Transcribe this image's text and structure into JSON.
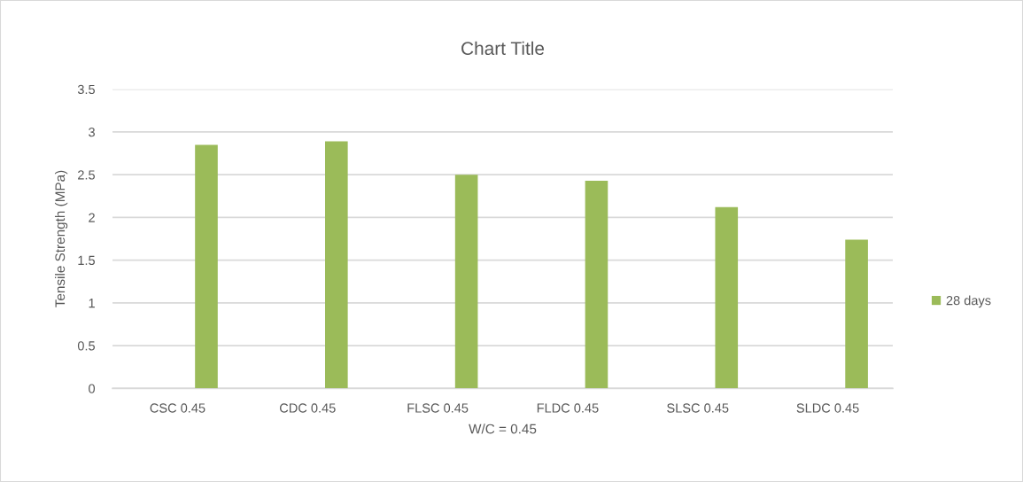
{
  "chart_data": {
    "type": "bar",
    "title": "Chart Title",
    "xlabel": "W/C = 0.45",
    "ylabel": "Tensile Strength (MPa)",
    "categories": [
      "CSC 0.45",
      "CDC 0.45",
      "FLSC 0.45",
      "FLDC 0.45",
      "SLSC 0.45",
      "SLDC 0.45"
    ],
    "series": [
      {
        "values": [
          null,
          null,
          null,
          null,
          null,
          null
        ]
      },
      {
        "values": [
          null,
          null,
          null,
          null,
          null,
          null
        ]
      },
      {
        "name": "28 days",
        "color": "#9bbb59",
        "values": [
          2.85,
          2.89,
          2.5,
          2.43,
          2.12,
          1.74
        ]
      }
    ],
    "ylim": [
      0,
      3.5
    ],
    "yticks": [
      0,
      0.5,
      1,
      1.5,
      2,
      2.5,
      3,
      3.5
    ],
    "grid": "y",
    "legend": "right"
  }
}
